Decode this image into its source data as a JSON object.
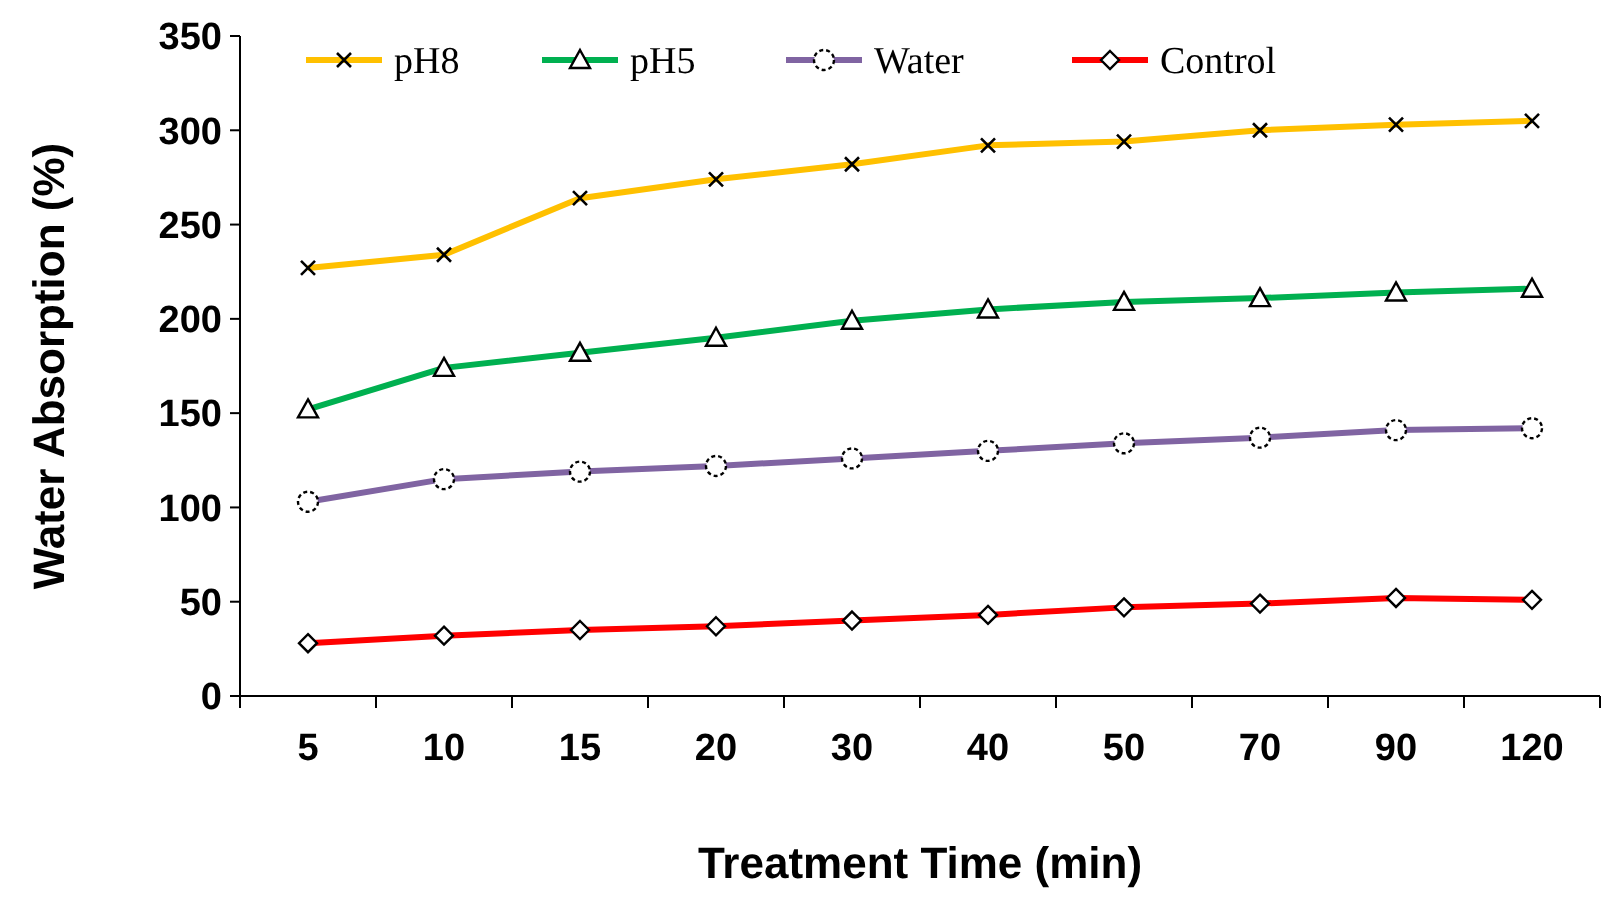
{
  "chart_data": {
    "type": "line",
    "xlabel": "Treatment Time (min)",
    "ylabel": "Water Absorption (%)",
    "categories": [
      "5",
      "10",
      "15",
      "20",
      "30",
      "40",
      "50",
      "70",
      "90",
      "120"
    ],
    "series": [
      {
        "name": "pH8",
        "color": "#ffc000",
        "marker": "cross",
        "values": [
          227,
          234,
          264,
          274,
          282,
          292,
          294,
          300,
          303,
          305
        ]
      },
      {
        "name": "pH5",
        "color": "#00b050",
        "marker": "triangle",
        "values": [
          152,
          174,
          182,
          190,
          199,
          205,
          209,
          211,
          214,
          216
        ]
      },
      {
        "name": "Water",
        "color": "#8064a2",
        "marker": "circle",
        "values": [
          103,
          115,
          119,
          122,
          126,
          130,
          134,
          137,
          141,
          142
        ]
      },
      {
        "name": "Control",
        "color": "#ff0000",
        "marker": "diamond",
        "values": [
          28,
          32,
          35,
          37,
          40,
          43,
          47,
          49,
          52,
          51
        ]
      }
    ],
    "ylim": [
      0,
      350
    ],
    "yticks": [
      0,
      50,
      100,
      150,
      200,
      250,
      300,
      350
    ],
    "grid": false,
    "legend": "top"
  }
}
